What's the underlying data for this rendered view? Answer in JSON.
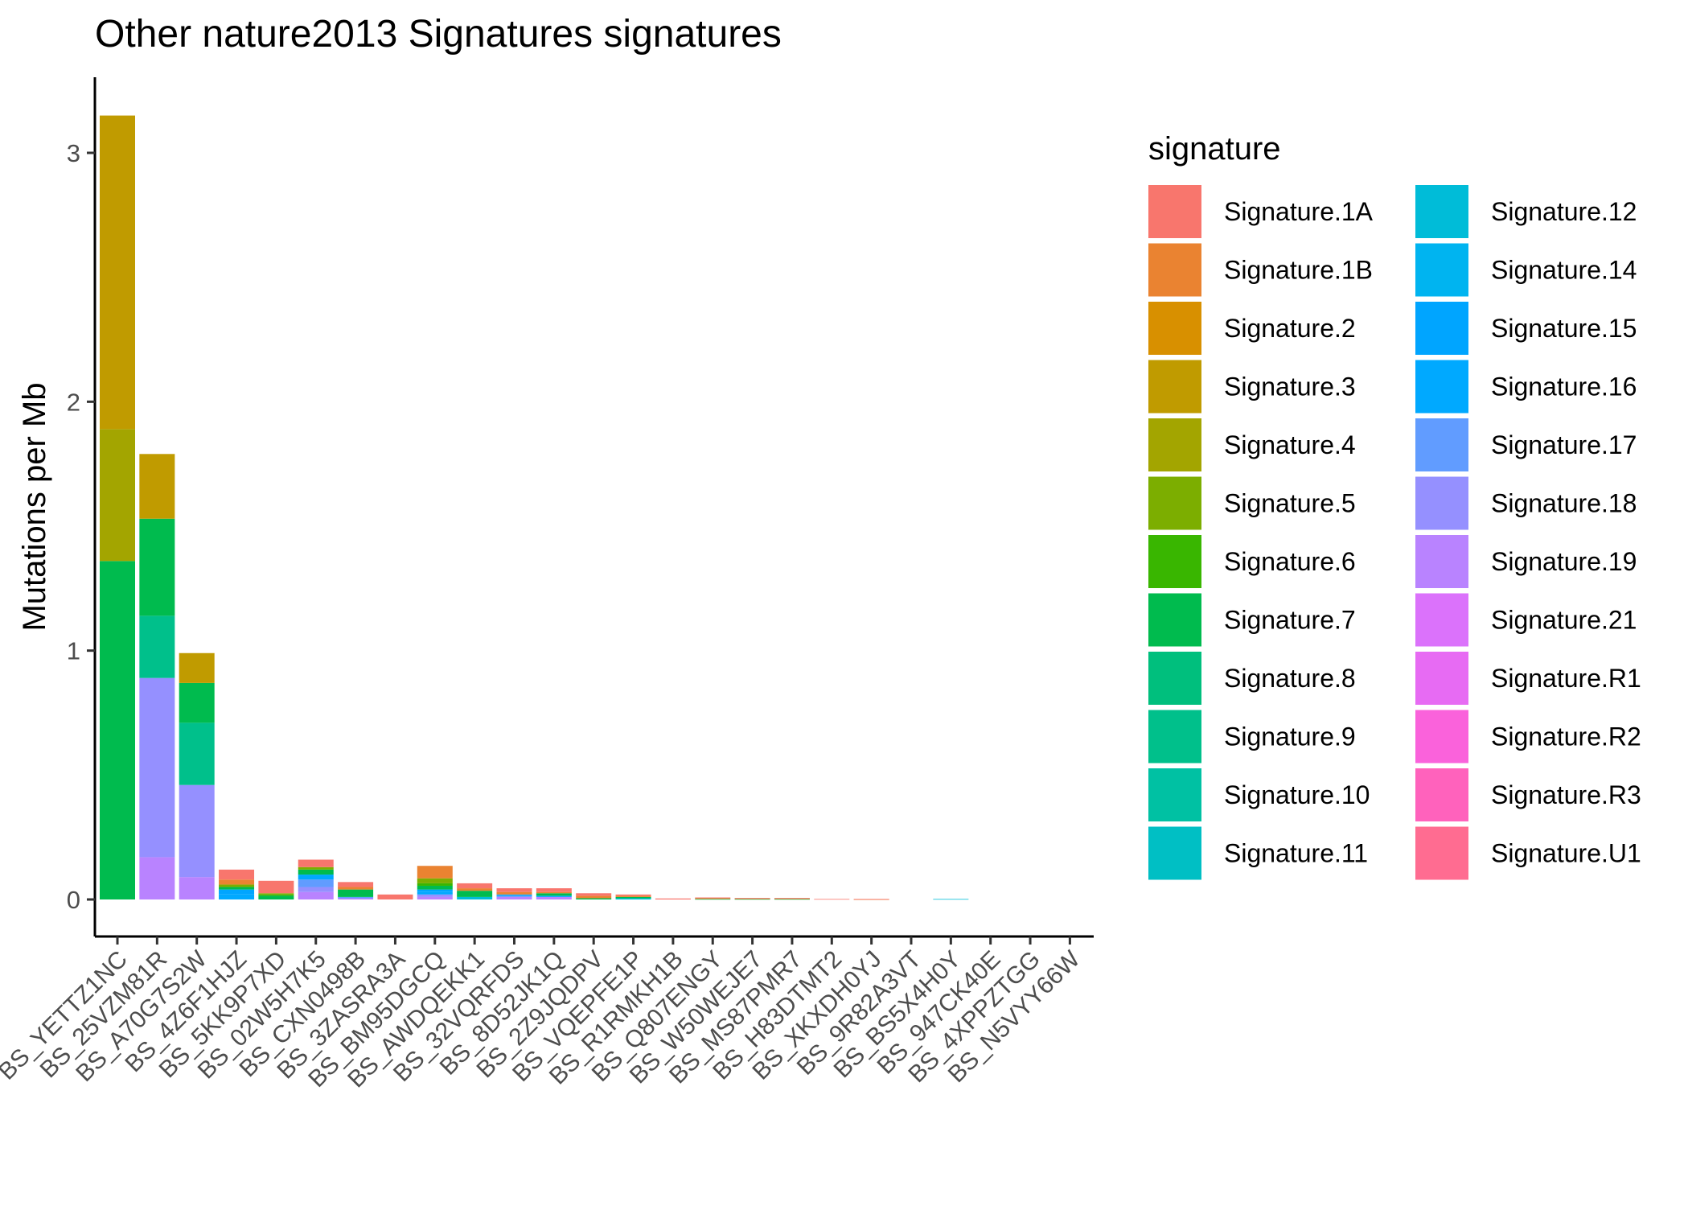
{
  "chart_data": {
    "type": "bar",
    "stacked": true,
    "title": "Other nature2013 Signatures signatures",
    "xlabel": "",
    "ylabel": "Mutations per Mb",
    "ylim": [
      0,
      3.25
    ],
    "yticks": [
      0,
      1,
      2,
      3
    ],
    "grid": false,
    "legend": {
      "title": "signature",
      "position": "right",
      "columns": 2
    },
    "categories": [
      "BS_YETTZ1NC",
      "BS_25VZM81R",
      "BS_A70G7S2W",
      "BS_4Z6F1HJZ",
      "BS_5KK9P7XD",
      "BS_02W5H7K5",
      "BS_CXN0498B",
      "BS_3ZASRA3A",
      "BS_BM95DGCQ",
      "BS_AWDQEKK1",
      "BS_32VQRFDS",
      "BS_8D52JK1Q",
      "BS_2Z9JQDPV",
      "BS_VQEPFE1P",
      "BS_R1RMKH1B",
      "BS_Q807ENGY",
      "BS_W50WEJE7",
      "BS_MS87PMR7",
      "BS_H83DTMT2",
      "BS_XKXDH0YJ",
      "BS_9R82A3VT",
      "BS_BS5X4H0Y",
      "BS_947CK40E",
      "BS_4XPPZTGG",
      "BS_N5VYY66W"
    ],
    "series": [
      {
        "name": "Signature.1A",
        "color": "#F8766D",
        "values": [
          0,
          0,
          0,
          0.04,
          0.05,
          0.03,
          0.02,
          0.02,
          0,
          0.02,
          0.015,
          0.015,
          0.01,
          0.005,
          0.004,
          0.003,
          0.002,
          0.002,
          0.002,
          0.001,
          0,
          0,
          0,
          0,
          0
        ]
      },
      {
        "name": "Signature.1B",
        "color": "#EA8331",
        "values": [
          0,
          0,
          0,
          0.02,
          0,
          0,
          0.01,
          0,
          0.05,
          0.01,
          0.01,
          0.005,
          0.01,
          0.005,
          0,
          0.003,
          0.002,
          0.002,
          0,
          0.001,
          0,
          0,
          0,
          0,
          0
        ]
      },
      {
        "name": "Signature.2",
        "color": "#D89000",
        "values": [
          0,
          0,
          0,
          0,
          0,
          0,
          0,
          0,
          0,
          0,
          0,
          0,
          0,
          0,
          0,
          0,
          0,
          0,
          0,
          0,
          0,
          0,
          0,
          0,
          0
        ]
      },
      {
        "name": "Signature.3",
        "color": "#C09B00",
        "values": [
          1.26,
          0.26,
          0.12,
          0,
          0,
          0,
          0,
          0,
          0,
          0,
          0,
          0,
          0,
          0,
          0,
          0,
          0,
          0,
          0,
          0,
          0,
          0,
          0,
          0,
          0
        ]
      },
      {
        "name": "Signature.4",
        "color": "#A3A500",
        "values": [
          0.53,
          0,
          0,
          0,
          0,
          0,
          0,
          0,
          0,
          0,
          0,
          0,
          0,
          0,
          0,
          0,
          0,
          0,
          0,
          0,
          0,
          0,
          0,
          0,
          0
        ]
      },
      {
        "name": "Signature.5",
        "color": "#7CAE00",
        "values": [
          0,
          0,
          0,
          0.01,
          0.005,
          0.01,
          0,
          0,
          0.02,
          0,
          0,
          0,
          0,
          0,
          0,
          0,
          0,
          0,
          0,
          0,
          0,
          0,
          0,
          0,
          0
        ]
      },
      {
        "name": "Signature.6",
        "color": "#39B600",
        "values": [
          0,
          0,
          0,
          0,
          0.005,
          0,
          0,
          0,
          0.01,
          0,
          0,
          0,
          0,
          0,
          0,
          0,
          0,
          0,
          0,
          0,
          0,
          0,
          0,
          0,
          0
        ]
      },
      {
        "name": "Signature.7",
        "color": "#00BB4E",
        "values": [
          1.36,
          0.39,
          0.16,
          0.01,
          0.015,
          0.02,
          0.03,
          0,
          0.015,
          0.025,
          0,
          0.01,
          0.005,
          0.005,
          0,
          0.002,
          0.002,
          0.002,
          0,
          0,
          0,
          0,
          0,
          0,
          0
        ]
      },
      {
        "name": "Signature.8",
        "color": "#00BF7D",
        "values": [
          0,
          0,
          0,
          0,
          0,
          0,
          0,
          0,
          0,
          0,
          0,
          0,
          0,
          0,
          0,
          0,
          0,
          0,
          0,
          0,
          0,
          0,
          0,
          0,
          0
        ]
      },
      {
        "name": "Signature.9",
        "color": "#00C08B",
        "values": [
          0,
          0.25,
          0.25,
          0,
          0,
          0,
          0,
          0,
          0,
          0,
          0,
          0,
          0,
          0,
          0,
          0,
          0,
          0,
          0,
          0,
          0,
          0,
          0,
          0,
          0
        ]
      },
      {
        "name": "Signature.10",
        "color": "#00C1A3",
        "values": [
          0,
          0,
          0,
          0,
          0,
          0,
          0,
          0,
          0,
          0,
          0,
          0,
          0,
          0,
          0,
          0,
          0,
          0,
          0,
          0,
          0,
          0,
          0,
          0,
          0
        ]
      },
      {
        "name": "Signature.11",
        "color": "#00BFC4",
        "values": [
          0,
          0,
          0,
          0,
          0,
          0,
          0,
          0,
          0,
          0,
          0,
          0,
          0,
          0,
          0,
          0,
          0,
          0,
          0,
          0,
          0,
          0,
          0,
          0,
          0
        ]
      },
      {
        "name": "Signature.12",
        "color": "#00BCD8",
        "values": [
          0,
          0,
          0,
          0,
          0,
          0,
          0,
          0,
          0,
          0.01,
          0,
          0,
          0,
          0.005,
          0,
          0,
          0,
          0,
          0,
          0,
          0,
          0.002,
          0,
          0,
          0
        ]
      },
      {
        "name": "Signature.14",
        "color": "#00B4F0",
        "values": [
          0,
          0,
          0,
          0,
          0,
          0,
          0,
          0,
          0,
          0,
          0,
          0,
          0,
          0,
          0,
          0,
          0,
          0,
          0,
          0,
          0,
          0,
          0,
          0,
          0
        ]
      },
      {
        "name": "Signature.15",
        "color": "#00A5FF",
        "values": [
          0,
          0,
          0,
          0.02,
          0,
          0,
          0,
          0,
          0.01,
          0,
          0.005,
          0.005,
          0,
          0,
          0,
          0,
          0,
          0,
          0,
          0,
          0,
          0,
          0,
          0,
          0
        ]
      },
      {
        "name": "Signature.16",
        "color": "#00A9FF",
        "values": [
          0,
          0,
          0,
          0.02,
          0,
          0.02,
          0,
          0,
          0.01,
          0,
          0,
          0,
          0,
          0,
          0,
          0,
          0,
          0,
          0,
          0,
          0,
          0,
          0,
          0,
          0
        ]
      },
      {
        "name": "Signature.17",
        "color": "#619CFF",
        "values": [
          0,
          0,
          0,
          0,
          0,
          0.03,
          0.005,
          0,
          0,
          0,
          0.005,
          0,
          0,
          0,
          0,
          0,
          0,
          0,
          0,
          0,
          0,
          0,
          0,
          0,
          0
        ]
      },
      {
        "name": "Signature.18",
        "color": "#9590FF",
        "values": [
          0,
          0.72,
          0.37,
          0,
          0,
          0.02,
          0,
          0,
          0.01,
          0,
          0,
          0,
          0,
          0,
          0,
          0,
          0,
          0,
          0,
          0,
          0,
          0,
          0,
          0,
          0
        ]
      },
      {
        "name": "Signature.19",
        "color": "#B983FF",
        "values": [
          0,
          0.17,
          0.09,
          0,
          0,
          0.03,
          0.005,
          0,
          0.01,
          0,
          0.01,
          0.01,
          0,
          0,
          0,
          0,
          0,
          0,
          0,
          0,
          0,
          0,
          0,
          0,
          0
        ]
      },
      {
        "name": "Signature.21",
        "color": "#DB72FB",
        "values": [
          0,
          0,
          0,
          0,
          0,
          0,
          0,
          0,
          0,
          0,
          0,
          0,
          0,
          0,
          0,
          0,
          0,
          0,
          0,
          0,
          0,
          0,
          0,
          0,
          0
        ]
      },
      {
        "name": "Signature.R1",
        "color": "#E76BF3",
        "values": [
          0,
          0,
          0,
          0,
          0,
          0,
          0,
          0,
          0,
          0,
          0,
          0,
          0,
          0,
          0,
          0,
          0,
          0,
          0,
          0,
          0,
          0,
          0,
          0,
          0
        ]
      },
      {
        "name": "Signature.R2",
        "color": "#FA62DB",
        "values": [
          0,
          0,
          0,
          0,
          0,
          0,
          0,
          0,
          0,
          0,
          0,
          0,
          0,
          0,
          0,
          0,
          0,
          0,
          0,
          0,
          0,
          0,
          0,
          0,
          0
        ]
      },
      {
        "name": "Signature.R3",
        "color": "#FF62BC",
        "values": [
          0,
          0,
          0,
          0,
          0,
          0,
          0,
          0,
          0,
          0,
          0,
          0,
          0,
          0,
          0,
          0,
          0,
          0,
          0,
          0,
          0,
          0,
          0,
          0,
          0
        ]
      },
      {
        "name": "Signature.U1",
        "color": "#FF6C91",
        "values": [
          0,
          0,
          0,
          0,
          0,
          0,
          0,
          0,
          0,
          0,
          0,
          0,
          0,
          0,
          0,
          0,
          0,
          0,
          0,
          0,
          0,
          0,
          0,
          0,
          0
        ]
      }
    ]
  }
}
